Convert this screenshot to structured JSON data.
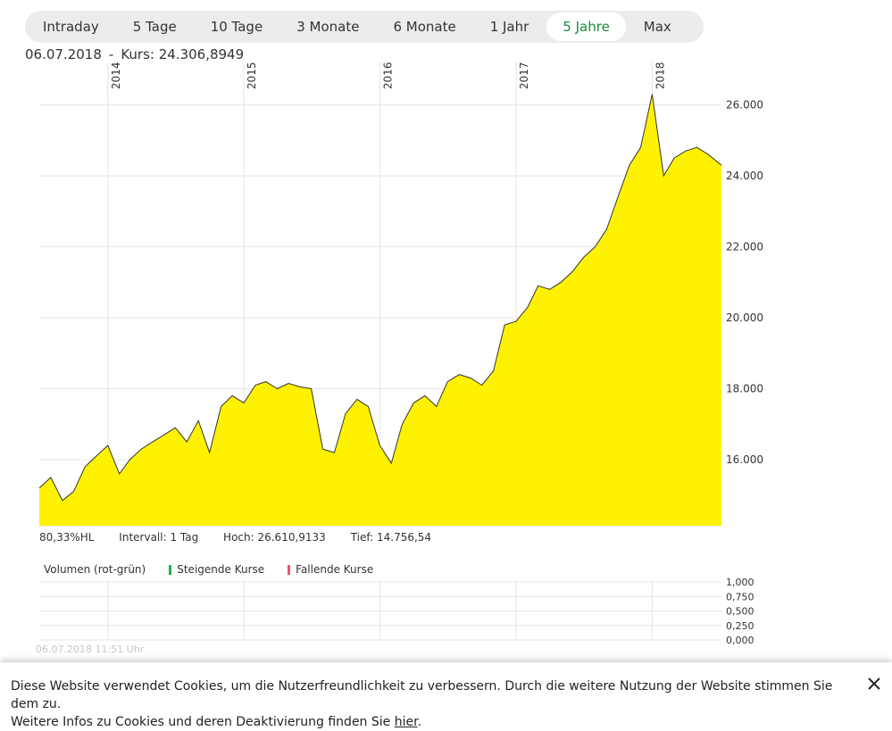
{
  "tabs": [
    {
      "label": "Intraday",
      "active": false
    },
    {
      "label": "5 Tage",
      "active": false
    },
    {
      "label": "10 Tage",
      "active": false
    },
    {
      "label": "3 Monate",
      "active": false
    },
    {
      "label": "6 Monate",
      "active": false
    },
    {
      "label": "1 Jahr",
      "active": false
    },
    {
      "label": "5 Jahre",
      "active": true
    },
    {
      "label": "Max",
      "active": false
    }
  ],
  "quote": {
    "date": "06.07.2018",
    "separator": "-",
    "price_text": "Kurs: 24.306,8949"
  },
  "stats": {
    "hl": "80,33%HL",
    "interval": "Intervall: 1 Tag",
    "high": "Hoch: 26.610,9133",
    "low": "Tief:  14.756,54"
  },
  "volume": {
    "title": "Volumen (rot-grün)",
    "rising_label": "Steigende Kurse",
    "falling_label": "Fallende Kurse"
  },
  "timestamp": "06.07.2018 11:51 Uhr",
  "cookie": {
    "text_line1": "Diese Website verwendet Cookies, um die Nutzerfreundlichkeit zu verbessern. Durch die weitere Nutzung der Website stimmen Sie dem zu.",
    "text_line2_prefix": "Weitere Infos zu Cookies und deren Deaktivierung finden Sie",
    "link_text": "hier",
    "text_line2_suffix": ".",
    "close_icon": "close-icon"
  },
  "colors": {
    "fill": "#fff200",
    "line": "#333333",
    "accent": "#1a8a3a",
    "rising": "#22b14c",
    "falling": "#ee5566",
    "grid": "#e6e6e6"
  },
  "chart_data": [
    {
      "type": "area",
      "title": "",
      "x_ticks": [
        "2014",
        "2015",
        "2016",
        "2017",
        "2018"
      ],
      "y_ticks": [
        "16.000",
        "18.000",
        "20.000",
        "22.000",
        "24.000",
        "26.000"
      ],
      "ylim": [
        14000,
        27000
      ],
      "x": [
        "2013-07",
        "2013-08",
        "2013-09",
        "2013-10",
        "2013-11",
        "2013-12",
        "2014-01",
        "2014-02",
        "2014-03",
        "2014-04",
        "2014-05",
        "2014-06",
        "2014-07",
        "2014-08",
        "2014-09",
        "2014-10",
        "2014-11",
        "2014-12",
        "2015-01",
        "2015-02",
        "2015-03",
        "2015-04",
        "2015-05",
        "2015-06",
        "2015-07",
        "2015-08",
        "2015-09",
        "2015-10",
        "2015-11",
        "2015-12",
        "2016-01",
        "2016-02",
        "2016-03",
        "2016-04",
        "2016-05",
        "2016-06",
        "2016-07",
        "2016-08",
        "2016-09",
        "2016-10",
        "2016-11",
        "2016-12",
        "2017-01",
        "2017-02",
        "2017-03",
        "2017-04",
        "2017-05",
        "2017-06",
        "2017-07",
        "2017-08",
        "2017-09",
        "2017-10",
        "2017-11",
        "2017-12",
        "2018-01",
        "2018-02",
        "2018-03",
        "2018-04",
        "2018-05",
        "2018-06",
        "2018-07"
      ],
      "series": [
        {
          "values": [
            15200,
            15500,
            14850,
            15100,
            15800,
            16100,
            16400,
            15600,
            16000,
            16300,
            16500,
            16700,
            16900,
            16500,
            17100,
            16200,
            17500,
            17800,
            17600,
            18100,
            18200,
            18000,
            18150,
            18050,
            18000,
            16300,
            16200,
            17300,
            17700,
            17500,
            16400,
            15900,
            17000,
            17600,
            17800,
            17500,
            18200,
            18400,
            18300,
            18100,
            18500,
            19800,
            19900,
            20300,
            20900,
            20800,
            21000,
            21300,
            21700,
            22000,
            22500,
            23400,
            24300,
            24800,
            26300,
            24000,
            24500,
            24700,
            24800,
            24600,
            24300
          ]
        }
      ],
      "grid": true
    },
    {
      "type": "bar",
      "title": "Volumen (rot-grün)",
      "y_ticks": [
        "0,000",
        "0,250",
        "0,500",
        "0,750",
        "1,000"
      ],
      "ylim": [
        0,
        1
      ],
      "grid": true
    }
  ]
}
